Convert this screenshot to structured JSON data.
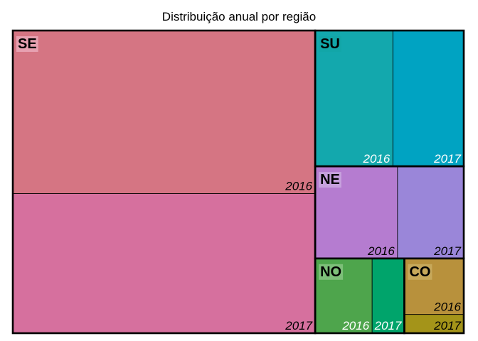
{
  "chart_data": {
    "type": "treemap",
    "title": "Distribuição anual por região",
    "groups": [
      {
        "name": "SE",
        "label_bg": "#E7A1B1",
        "children": [
          {
            "name": "2016",
            "value": 53.3,
            "color": "#D57583",
            "label_color": "#000000"
          },
          {
            "name": "2017",
            "value": 45.6,
            "color": "#D6709E",
            "label_color": "#000000"
          }
        ]
      },
      {
        "name": "SU",
        "label_bg": "#12A6A8",
        "children": [
          {
            "name": "2016",
            "value": 11.4,
            "color": "#13A8AD",
            "label_color": "#FFFFFF"
          },
          {
            "name": "2017",
            "value": 10.4,
            "color": "#00A3C2",
            "label_color": "#FFFFFF"
          }
        ]
      },
      {
        "name": "NE",
        "label_bg": "#C7A1DE",
        "children": [
          {
            "name": "2016",
            "value": 8.2,
            "color": "#B57CD0",
            "label_color": "#000000"
          },
          {
            "name": "2017",
            "value": 6.6,
            "color": "#9A86D9",
            "label_color": "#000000"
          }
        ]
      },
      {
        "name": "NO",
        "label_bg": "#7DBF79",
        "children": [
          {
            "name": "2016",
            "value": 4.6,
            "color": "#4EA54C",
            "label_color": "#FFFFFF"
          },
          {
            "name": "2017",
            "value": 2.6,
            "color": "#00A46B",
            "label_color": "#FFFFFF"
          }
        ]
      },
      {
        "name": "CO",
        "label_bg": "#C7A85A",
        "children": [
          {
            "name": "2016",
            "value": 3.6,
            "color": "#B8913C",
            "label_color": "#000000"
          },
          {
            "name": "2017",
            "value": 1.2,
            "color": "#A49419",
            "label_color": "#000000"
          }
        ]
      }
    ]
  }
}
